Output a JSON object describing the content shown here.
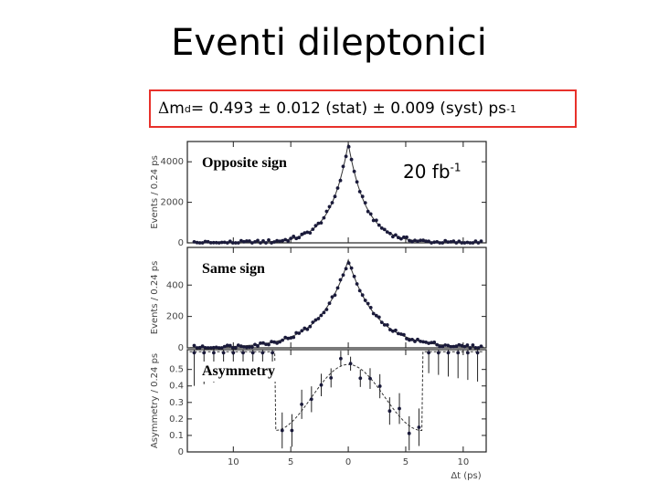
{
  "slide": {
    "title": "Eventi dileptonici",
    "result": {
      "symbol": "Δ",
      "m": "m",
      "sub": "d",
      "text": " = 0.493 ± 0.012 (stat) ±  0.009 (syst)  ps",
      "exp": "-1"
    },
    "luminosity": {
      "value": "20 fb",
      "exp": "-1"
    },
    "accent_color": "#e8312b"
  },
  "chart_data": {
    "type": "scatter",
    "x_label": "Δt (ps)",
    "x_ticks": [
      "10",
      "5",
      "0",
      "5",
      "10"
    ],
    "xlim": [
      -14,
      12
    ],
    "panels": [
      {
        "label": "Opposite sign",
        "ylabel": "Events / 0.24 ps",
        "y_ticks": [
          "0",
          "2000",
          "4000"
        ],
        "ylim": [
          0,
          5000
        ],
        "points_desc": "symmetric peak, maximum about 4900 at Δt = 0"
      },
      {
        "label": "Same sign",
        "ylabel": "Events / 0.24 ps",
        "y_ticks": [
          "0",
          "200",
          "400"
        ],
        "ylim": [
          0,
          640
        ],
        "points_desc": "symmetric peak, maximum about 560 at Δt = 0"
      },
      {
        "label": "Asymmetry",
        "ylabel": "Asymmetry / 0.24 ps",
        "y_ticks": [
          "0",
          "0.1",
          "0.2",
          "0.3",
          "0.4",
          "0.5"
        ],
        "ylim": [
          0,
          0.62
        ],
        "points_desc": "minimum near 0.15 around |Δt| ≈ 6 ps, about 0.53 at Δt = 0"
      }
    ]
  }
}
